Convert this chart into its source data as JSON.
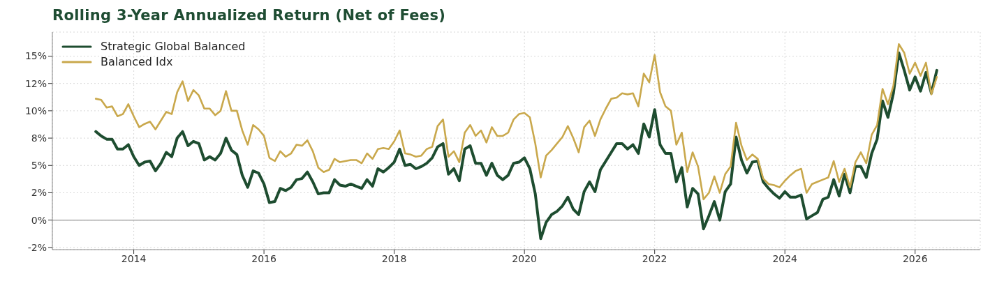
{
  "chart_data": {
    "type": "line",
    "title": "Rolling 3-Year Annualized Return (Net of Fees)",
    "x": [
      "2013-06",
      "2013-07",
      "2013-08",
      "2013-09",
      "2013-10",
      "2013-11",
      "2013-12",
      "2014-01",
      "2014-02",
      "2014-03",
      "2014-04",
      "2014-05",
      "2014-06",
      "2014-07",
      "2014-08",
      "2014-09",
      "2014-10",
      "2014-11",
      "2014-12",
      "2015-01",
      "2015-02",
      "2015-03",
      "2015-04",
      "2015-05",
      "2015-06",
      "2015-07",
      "2015-08",
      "2015-09",
      "2015-10",
      "2015-11",
      "2015-12",
      "2016-01",
      "2016-02",
      "2016-03",
      "2016-04",
      "2016-05",
      "2016-06",
      "2016-07",
      "2016-08",
      "2016-09",
      "2016-10",
      "2016-11",
      "2016-12",
      "2017-01",
      "2017-02",
      "2017-03",
      "2017-04",
      "2017-05",
      "2017-06",
      "2017-07",
      "2017-08",
      "2017-09",
      "2017-10",
      "2017-11",
      "2017-12",
      "2018-01",
      "2018-02",
      "2018-03",
      "2018-04",
      "2018-05",
      "2018-06",
      "2018-07",
      "2018-08",
      "2018-09",
      "2018-10",
      "2018-11",
      "2018-12",
      "2019-01",
      "2019-02",
      "2019-03",
      "2019-04",
      "2019-05",
      "2019-06",
      "2019-07",
      "2019-08",
      "2019-09",
      "2019-10",
      "2019-11",
      "2019-12",
      "2020-01",
      "2020-02",
      "2020-03",
      "2020-04",
      "2020-05",
      "2020-06",
      "2020-07",
      "2020-08",
      "2020-09",
      "2020-10",
      "2020-11",
      "2020-12",
      "2021-01",
      "2021-02",
      "2021-03",
      "2021-04",
      "2021-05",
      "2021-06",
      "2021-07",
      "2021-08",
      "2021-09",
      "2021-10",
      "2021-11",
      "2021-12",
      "2022-01",
      "2022-02",
      "2022-03",
      "2022-04",
      "2022-05",
      "2022-06",
      "2022-07",
      "2022-08",
      "2022-09",
      "2022-10",
      "2022-11",
      "2022-12",
      "2023-01",
      "2023-02",
      "2023-03",
      "2023-04",
      "2023-05",
      "2023-06",
      "2023-07",
      "2023-08",
      "2023-09",
      "2023-10",
      "2023-11",
      "2023-12",
      "2024-01",
      "2024-02",
      "2024-03",
      "2024-04",
      "2024-05",
      "2024-06",
      "2024-07",
      "2024-08",
      "2024-09",
      "2024-10",
      "2024-11",
      "2024-12",
      "2025-01",
      "2025-02",
      "2025-03",
      "2025-04",
      "2025-05",
      "2025-06",
      "2025-07",
      "2025-08",
      "2025-09",
      "2025-10",
      "2025-11",
      "2025-12",
      "2026-01",
      "2026-02",
      "2026-03",
      "2026-04",
      "2026-05"
    ],
    "series": [
      {
        "name": "Strategic Global Balanced",
        "color": "#1e4d30",
        "values": [
          8.1,
          7.7,
          7.4,
          7.4,
          6.5,
          6.5,
          6.9,
          5.8,
          5.0,
          5.3,
          5.4,
          4.5,
          5.2,
          6.2,
          5.8,
          7.5,
          8.1,
          6.8,
          7.2,
          7.0,
          5.5,
          5.8,
          5.5,
          6.1,
          7.5,
          6.4,
          6.0,
          4.1,
          3.0,
          4.5,
          4.3,
          3.3,
          1.6,
          1.7,
          2.9,
          2.7,
          3.0,
          3.7,
          3.8,
          4.4,
          3.5,
          2.4,
          2.5,
          2.5,
          3.7,
          3.2,
          3.1,
          3.3,
          3.1,
          2.9,
          3.7,
          3.1,
          4.7,
          4.4,
          4.8,
          5.3,
          6.5,
          5.0,
          5.1,
          4.7,
          4.9,
          5.2,
          5.7,
          6.7,
          7.0,
          4.2,
          4.7,
          3.6,
          6.5,
          6.8,
          5.2,
          5.2,
          4.1,
          5.2,
          4.1,
          3.7,
          4.1,
          5.2,
          5.3,
          5.7,
          4.7,
          2.4,
          -1.7,
          -0.2,
          0.5,
          0.8,
          1.3,
          2.1,
          1.0,
          0.5,
          2.6,
          3.5,
          2.6,
          4.6,
          5.4,
          6.2,
          7.0,
          7.0,
          6.5,
          6.9,
          6.1,
          8.8,
          7.6,
          10.1,
          6.9,
          6.1,
          6.1,
          3.5,
          4.8,
          1.2,
          2.9,
          2.4,
          -0.8,
          0.4,
          1.7,
          0.0,
          2.6,
          3.3,
          7.6,
          5.5,
          4.3,
          5.3,
          5.4,
          3.5,
          2.9,
          2.4,
          2.0,
          2.6,
          2.1,
          2.1,
          2.3,
          0.1,
          0.4,
          0.7,
          1.9,
          2.1,
          3.7,
          2.2,
          4.2,
          2.5,
          4.9,
          4.9,
          3.9,
          6.1,
          7.4,
          10.9,
          9.4,
          11.6,
          15.3,
          13.7,
          11.9,
          13.1,
          11.8,
          13.5,
          11.6,
          13.7
        ]
      },
      {
        "name": "Balanced Idx",
        "color": "#c9a84c",
        "values": [
          11.1,
          11.0,
          10.3,
          10.4,
          9.5,
          9.7,
          10.6,
          9.5,
          8.5,
          8.8,
          9.0,
          8.3,
          9.1,
          9.9,
          9.7,
          11.7,
          12.7,
          10.9,
          11.9,
          11.4,
          10.2,
          10.2,
          9.6,
          10.0,
          11.8,
          10.0,
          10.0,
          8.2,
          6.9,
          8.7,
          8.3,
          7.7,
          5.7,
          5.4,
          6.3,
          5.8,
          6.1,
          6.9,
          6.8,
          7.3,
          6.3,
          4.8,
          4.4,
          4.6,
          5.6,
          5.3,
          5.4,
          5.5,
          5.5,
          5.2,
          6.1,
          5.6,
          6.5,
          6.6,
          6.5,
          7.2,
          8.2,
          6.1,
          6.0,
          5.8,
          5.9,
          6.5,
          6.7,
          8.6,
          9.2,
          5.8,
          6.3,
          5.3,
          8.0,
          8.7,
          7.7,
          8.2,
          7.1,
          8.5,
          7.7,
          7.7,
          8.0,
          9.2,
          9.7,
          9.8,
          9.4,
          7.0,
          3.9,
          5.9,
          6.4,
          7.0,
          7.6,
          8.6,
          7.5,
          6.2,
          8.5,
          9.1,
          7.7,
          9.2,
          10.2,
          11.1,
          11.2,
          11.6,
          11.5,
          11.6,
          10.4,
          13.4,
          12.6,
          15.1,
          11.7,
          10.4,
          10.0,
          6.9,
          8.0,
          4.4,
          6.2,
          4.9,
          1.9,
          2.5,
          4.0,
          2.5,
          4.2,
          4.9,
          8.9,
          6.8,
          5.5,
          6.0,
          5.6,
          3.8,
          3.3,
          3.2,
          3.0,
          3.6,
          4.1,
          4.5,
          4.7,
          2.5,
          3.3,
          3.5,
          3.7,
          3.9,
          5.4,
          3.5,
          4.7,
          3.0,
          5.3,
          6.2,
          5.2,
          7.8,
          8.7,
          12.0,
          10.6,
          12.3,
          16.1,
          15.3,
          13.4,
          14.4,
          13.2,
          14.4,
          11.5,
          13.1
        ]
      }
    ],
    "xlim": [
      "2012-10",
      "2027-01"
    ],
    "xticks": [
      "2014",
      "2016",
      "2018",
      "2020",
      "2022",
      "2024",
      "2026"
    ],
    "ylim": [
      -2.7,
      17.2
    ],
    "yticks": [
      {
        "value": -2.5,
        "label": "-2%"
      },
      {
        "value": 0,
        "label": "0%"
      },
      {
        "value": 2.5,
        "label": "2%"
      },
      {
        "value": 5,
        "label": "5%"
      },
      {
        "value": 7.5,
        "label": "8%"
      },
      {
        "value": 10,
        "label": "10%"
      },
      {
        "value": 12.5,
        "label": "12%"
      },
      {
        "value": 15,
        "label": "15%"
      }
    ],
    "ref_lines": [
      {
        "axis": "y",
        "value": 0,
        "color": "#aaaaaa"
      }
    ],
    "grid": true,
    "legend": "top left",
    "marker": "none",
    "line_style": "solid"
  }
}
